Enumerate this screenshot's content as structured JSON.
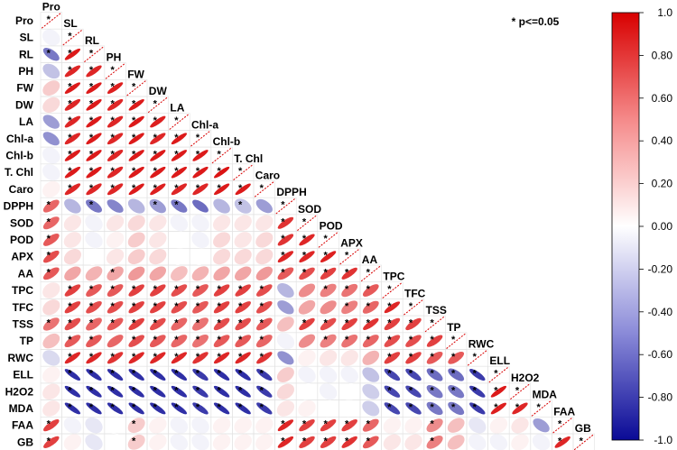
{
  "chart_data": {
    "type": "heatmap",
    "subtype": "lower-triangular correlation matrix (ellipses)",
    "variables": [
      "Pro",
      "SL",
      "RL",
      "PH",
      "FW",
      "DW",
      "LA",
      "Chl-a",
      "Chl-b",
      "T. Chl",
      "Caro",
      "DPPH",
      "SOD",
      "POD",
      "APX",
      "AA",
      "TPC",
      "TFC",
      "TSS",
      "TP",
      "RWC",
      "ELL",
      "H2O2",
      "MDA",
      "FAA",
      "GB"
    ],
    "significance_note": "* p<=0.05",
    "significance_marker": "*",
    "colorbar": {
      "min": -1.0,
      "max": 1.0,
      "ticks": [
        "1.0",
        "0.80",
        "0.60",
        "0.40",
        "0.20",
        "0.00",
        "-0.20",
        "-0.40",
        "-0.60",
        "-0.80",
        "-1.0"
      ],
      "low_color": "#0a0a96",
      "mid_color": "#ffffff",
      "high_color": "#d80000"
    },
    "correlations": [
      [
        1.0
      ],
      [
        -0.05,
        1.0
      ],
      [
        -0.55,
        0.9,
        1.0
      ],
      [
        -0.25,
        0.85,
        0.85,
        1.0
      ],
      [
        0.2,
        0.9,
        0.9,
        0.88,
        1.0
      ],
      [
        0.15,
        0.85,
        0.9,
        0.85,
        0.9,
        1.0
      ],
      [
        -0.4,
        0.85,
        0.9,
        0.85,
        0.9,
        0.88,
        1.0
      ],
      [
        -0.45,
        0.85,
        0.9,
        0.85,
        0.9,
        0.85,
        0.9,
        1.0
      ],
      [
        -0.05,
        0.9,
        0.9,
        0.85,
        0.9,
        0.9,
        0.9,
        0.9,
        1.0
      ],
      [
        -0.05,
        0.9,
        0.9,
        0.85,
        0.9,
        0.9,
        0.9,
        0.9,
        0.92,
        1.0
      ],
      [
        0.05,
        0.85,
        0.85,
        0.85,
        0.9,
        0.88,
        0.85,
        0.85,
        0.9,
        0.9,
        1.0
      ],
      [
        0.6,
        -0.3,
        -0.55,
        -0.5,
        -0.3,
        -0.4,
        -0.55,
        -0.6,
        -0.3,
        -0.25,
        -0.4,
        1.0
      ],
      [
        0.6,
        0.1,
        -0.05,
        0.1,
        0.15,
        0.1,
        -0.05,
        -0.05,
        0.1,
        0.1,
        0.1,
        0.8,
        1.0
      ],
      [
        0.65,
        0.1,
        -0.05,
        0.05,
        0.2,
        0.1,
        0.0,
        -0.05,
        0.15,
        0.1,
        0.15,
        0.8,
        0.85,
        1.0
      ],
      [
        0.7,
        0.15,
        0.0,
        0.1,
        0.2,
        0.15,
        0.0,
        0.0,
        0.15,
        0.15,
        0.15,
        0.85,
        0.85,
        0.88,
        1.0
      ],
      [
        0.65,
        0.35,
        0.3,
        0.35,
        0.4,
        0.35,
        0.25,
        0.3,
        0.35,
        0.35,
        0.4,
        0.65,
        0.7,
        0.75,
        0.8,
        1.0
      ],
      [
        0.1,
        0.75,
        0.65,
        0.65,
        0.75,
        0.75,
        0.7,
        0.65,
        0.75,
        0.75,
        0.7,
        -0.3,
        0.45,
        0.5,
        0.55,
        0.65,
        1.0
      ],
      [
        0.15,
        0.75,
        0.7,
        0.7,
        0.75,
        0.75,
        0.7,
        0.65,
        0.75,
        0.75,
        0.7,
        -0.4,
        0.35,
        0.45,
        0.5,
        0.6,
        0.85,
        1.0
      ],
      [
        0.55,
        0.7,
        0.6,
        0.65,
        0.75,
        0.7,
        0.6,
        0.55,
        0.7,
        0.7,
        0.65,
        0.25,
        0.75,
        0.7,
        0.75,
        0.8,
        0.75,
        0.75,
        1.0
      ],
      [
        0.25,
        0.65,
        0.65,
        0.6,
        0.7,
        0.65,
        0.6,
        0.55,
        0.65,
        0.65,
        0.6,
        -0.05,
        0.45,
        0.5,
        0.55,
        0.6,
        0.7,
        0.7,
        0.75,
        1.0
      ],
      [
        -0.15,
        0.85,
        0.85,
        0.8,
        0.85,
        0.85,
        0.85,
        0.8,
        0.85,
        0.85,
        0.8,
        -0.45,
        0.05,
        0.1,
        0.1,
        0.3,
        0.75,
        0.75,
        0.65,
        0.65,
        1.0
      ],
      [
        0.05,
        -0.85,
        -0.85,
        -0.85,
        -0.85,
        -0.85,
        -0.85,
        -0.8,
        -0.85,
        -0.85,
        -0.8,
        0.2,
        -0.05,
        -0.05,
        -0.05,
        -0.25,
        -0.75,
        -0.75,
        -0.6,
        -0.6,
        -0.8,
        1.0
      ],
      [
        0.1,
        -0.85,
        -0.85,
        -0.85,
        -0.85,
        -0.85,
        -0.85,
        -0.8,
        -0.85,
        -0.85,
        -0.8,
        0.15,
        0.0,
        -0.05,
        0.0,
        -0.2,
        -0.75,
        -0.75,
        -0.55,
        -0.55,
        -0.8,
        0.9,
        1.0
      ],
      [
        0.1,
        -0.85,
        -0.85,
        -0.85,
        -0.85,
        -0.85,
        -0.85,
        -0.8,
        -0.85,
        -0.85,
        -0.8,
        0.1,
        0.05,
        0.0,
        0.0,
        -0.2,
        -0.75,
        -0.75,
        -0.55,
        -0.55,
        -0.8,
        0.88,
        0.85,
        1.0
      ],
      [
        0.75,
        -0.05,
        -0.1,
        0.0,
        0.2,
        0.05,
        -0.05,
        -0.05,
        0.05,
        0.05,
        0.05,
        0.85,
        0.75,
        0.75,
        0.75,
        0.6,
        0.05,
        0.05,
        0.45,
        0.25,
        -0.1,
        0.05,
        0.1,
        -0.4,
        1.0
      ],
      [
        0.75,
        0.05,
        -0.1,
        0.0,
        0.2,
        0.05,
        -0.05,
        -0.05,
        0.05,
        0.05,
        0.05,
        0.85,
        0.75,
        0.75,
        0.8,
        0.65,
        0.1,
        0.1,
        0.5,
        0.25,
        -0.05,
        -0.05,
        0.05,
        -0.05,
        0.85,
        1.0
      ]
    ],
    "significant": [
      [
        1
      ],
      [
        0,
        1
      ],
      [
        1,
        1,
        1
      ],
      [
        0,
        1,
        1,
        1
      ],
      [
        0,
        1,
        1,
        1,
        1
      ],
      [
        0,
        1,
        1,
        1,
        1,
        1
      ],
      [
        0,
        1,
        1,
        1,
        1,
        1,
        1
      ],
      [
        0,
        1,
        1,
        1,
        1,
        1,
        1,
        1
      ],
      [
        0,
        1,
        1,
        1,
        1,
        1,
        1,
        1,
        1
      ],
      [
        0,
        1,
        1,
        1,
        1,
        1,
        1,
        1,
        1,
        1
      ],
      [
        0,
        1,
        1,
        1,
        1,
        1,
        1,
        1,
        1,
        1,
        1
      ],
      [
        1,
        0,
        1,
        0,
        0,
        1,
        1,
        0,
        0,
        1,
        0,
        1
      ],
      [
        1,
        0,
        0,
        0,
        0,
        0,
        0,
        0,
        0,
        0,
        0,
        1,
        1
      ],
      [
        1,
        0,
        0,
        0,
        0,
        0,
        0,
        0,
        0,
        0,
        0,
        1,
        1,
        1
      ],
      [
        1,
        0,
        0,
        0,
        0,
        0,
        0,
        0,
        0,
        0,
        0,
        1,
        1,
        1,
        1
      ],
      [
        1,
        0,
        0,
        1,
        0,
        0,
        0,
        0,
        0,
        0,
        0,
        1,
        1,
        1,
        1,
        1
      ],
      [
        0,
        1,
        1,
        1,
        1,
        1,
        1,
        1,
        1,
        1,
        1,
        0,
        0,
        1,
        1,
        1,
        1
      ],
      [
        0,
        1,
        1,
        1,
        1,
        1,
        1,
        1,
        1,
        1,
        1,
        0,
        0,
        0,
        1,
        1,
        1,
        1
      ],
      [
        1,
        1,
        1,
        1,
        1,
        1,
        1,
        1,
        1,
        1,
        1,
        0,
        1,
        1,
        1,
        1,
        1,
        1,
        1
      ],
      [
        0,
        1,
        1,
        0,
        1,
        1,
        1,
        1,
        1,
        1,
        1,
        0,
        0,
        1,
        1,
        1,
        1,
        1,
        1,
        1
      ],
      [
        0,
        1,
        1,
        1,
        1,
        1,
        1,
        1,
        1,
        1,
        1,
        0,
        0,
        0,
        0,
        0,
        1,
        1,
        1,
        1,
        1
      ],
      [
        0,
        1,
        1,
        1,
        1,
        1,
        1,
        1,
        1,
        1,
        1,
        0,
        0,
        0,
        0,
        0,
        1,
        1,
        1,
        1,
        1,
        1
      ],
      [
        0,
        1,
        1,
        1,
        1,
        1,
        1,
        1,
        1,
        1,
        1,
        0,
        0,
        0,
        0,
        0,
        1,
        1,
        1,
        1,
        1,
        1,
        1
      ],
      [
        0,
        1,
        1,
        1,
        1,
        1,
        1,
        1,
        1,
        1,
        1,
        0,
        0,
        0,
        0,
        0,
        1,
        1,
        1,
        1,
        1,
        1,
        1,
        1
      ],
      [
        1,
        0,
        0,
        0,
        1,
        0,
        0,
        0,
        0,
        0,
        0,
        1,
        1,
        1,
        1,
        1,
        0,
        0,
        1,
        0,
        0,
        0,
        0,
        0,
        1
      ],
      [
        1,
        0,
        0,
        0,
        1,
        0,
        0,
        0,
        0,
        0,
        0,
        1,
        1,
        1,
        1,
        1,
        0,
        0,
        1,
        0,
        0,
        0,
        0,
        0,
        1,
        1
      ]
    ]
  }
}
